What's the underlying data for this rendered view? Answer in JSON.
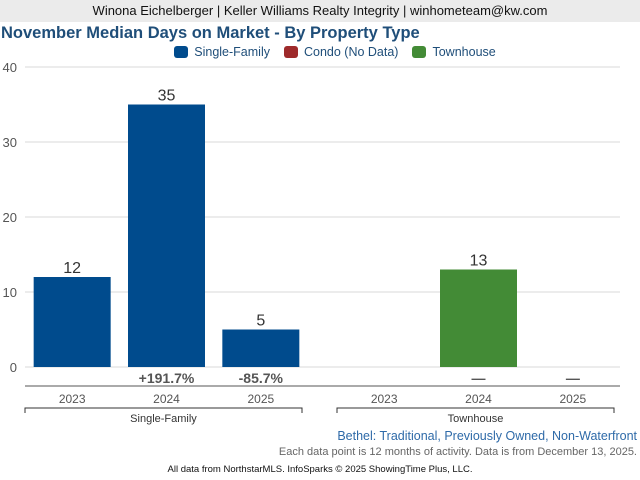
{
  "header": {
    "agent_line": "Winona Eichelberger | Keller Williams Realty Integrity | winhometeam@kw.com"
  },
  "chart_data": {
    "type": "bar",
    "title": "November Median Days on Market - By Property Type",
    "xlabel": "",
    "ylabel": "",
    "ylim": [
      0,
      40
    ],
    "yticks": [
      0,
      10,
      20,
      30,
      40
    ],
    "grid": true,
    "legend_position": "top-center",
    "legend": [
      {
        "name": "Single-Family",
        "color": "#004b8d"
      },
      {
        "name": "Condo (No Data)",
        "color": "#9e2a2b"
      },
      {
        "name": "Townhouse",
        "color": "#438b36"
      }
    ],
    "groups": [
      {
        "name": "Single-Family",
        "color": "#004b8d",
        "categories": [
          "2023",
          "2024",
          "2025"
        ],
        "values": [
          12,
          35,
          5
        ],
        "changes": [
          "",
          "+191.7%",
          "-85.7%"
        ]
      },
      {
        "name": "Townhouse",
        "color": "#438b36",
        "categories": [
          "2023",
          "2024",
          "2025"
        ],
        "values": [
          null,
          13,
          null
        ],
        "changes": [
          "",
          "—",
          "—"
        ]
      }
    ]
  },
  "notes": {
    "location": "Bethel: Traditional, Previously Owned, Non-Waterfront",
    "period": "Each data point is 12 months of activity. Data is from December 13, 2025.",
    "source": "All data from NorthstarMLS. InfoSparks © 2025 ShowingTime Plus, LLC."
  }
}
